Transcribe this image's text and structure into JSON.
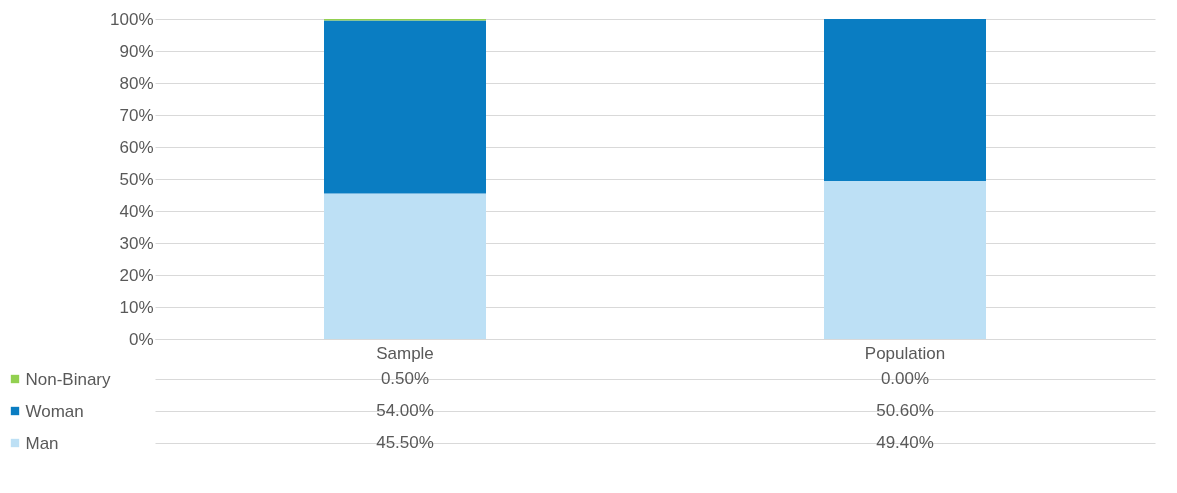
{
  "chart_data": {
    "type": "bar",
    "stacked": true,
    "categories": [
      "Sample",
      "Population"
    ],
    "series": [
      {
        "name": "Man",
        "color": "#bde0f5",
        "values": [
          45.5,
          49.4
        ],
        "value_labels": [
          "45.50%",
          "49.40%"
        ]
      },
      {
        "name": "Woman",
        "color": "#0a7dc2",
        "values": [
          54.0,
          50.6
        ],
        "value_labels": [
          "54.00%",
          "50.60%"
        ]
      },
      {
        "name": "Non-Binary",
        "color": "#92d050",
        "values": [
          0.5,
          0.0
        ],
        "value_labels": [
          "0.50%",
          "0.00%"
        ]
      }
    ],
    "ylim": [
      0,
      100
    ],
    "yticks": [
      {
        "value": 0,
        "label": "0%"
      },
      {
        "value": 10,
        "label": "10%"
      },
      {
        "value": 20,
        "label": "20%"
      },
      {
        "value": 30,
        "label": "30%"
      },
      {
        "value": 40,
        "label": "40%"
      },
      {
        "value": 50,
        "label": "50%"
      },
      {
        "value": 60,
        "label": "60%"
      },
      {
        "value": 70,
        "label": "70%"
      },
      {
        "value": 80,
        "label": "80%"
      },
      {
        "value": 90,
        "label": "90%"
      },
      {
        "value": 100,
        "label": "100%"
      }
    ],
    "grid": "y",
    "legend": "bottom"
  }
}
